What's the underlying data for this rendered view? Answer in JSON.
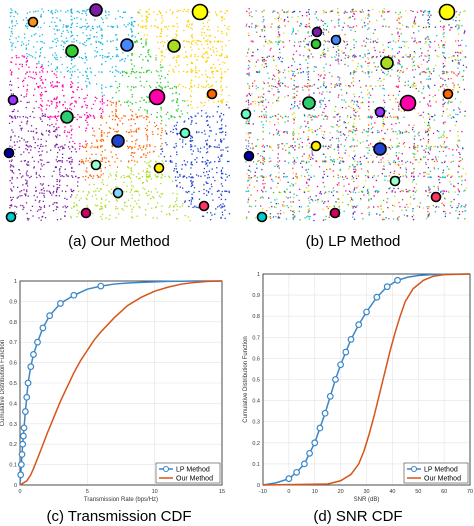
{
  "captions": {
    "a": "(a) Our Method",
    "b": "(b) LP Method",
    "c": "(c) Transmission CDF",
    "d": "(d) SNR CDF"
  },
  "colors": {
    "lp": "#3a86c8",
    "ours": "#d95319",
    "frame": "#222222",
    "grid": "#e3e3e3"
  },
  "maps": {
    "a": {
      "nodes": [
        {
          "color": "#ffff00",
          "size": "large"
        },
        {
          "color": "#7b1fa2",
          "size": "medium"
        },
        {
          "color": "#f7941d",
          "size": "small"
        },
        {
          "color": "#33cc33",
          "size": "medium"
        },
        {
          "color": "#4488ff",
          "size": "medium"
        },
        {
          "color": "#aadd22",
          "size": "medium"
        },
        {
          "color": "#ff00aa",
          "size": "large"
        },
        {
          "color": "#ff6600",
          "size": "small"
        },
        {
          "color": "#2ecc71",
          "size": "medium"
        },
        {
          "color": "#9933ff",
          "size": "small"
        },
        {
          "color": "#2244cc",
          "size": "medium"
        },
        {
          "color": "#66ffcc",
          "size": "small"
        },
        {
          "color": "#ffee00",
          "size": "small"
        },
        {
          "color": "#000099",
          "size": "small"
        },
        {
          "color": "#99ffcc",
          "size": "small"
        },
        {
          "color": "#cc0066",
          "size": "small"
        },
        {
          "color": "#ff3366",
          "size": "small"
        },
        {
          "color": "#7fd6ff",
          "size": "small"
        },
        {
          "color": "#00cccc",
          "size": "small"
        }
      ]
    },
    "b": {
      "nodes": [
        {
          "color": "#ffff00",
          "size": "large"
        },
        {
          "color": "#7b1fa2",
          "size": "small"
        },
        {
          "color": "#33cc33",
          "size": "small"
        },
        {
          "color": "#4488ff",
          "size": "small"
        },
        {
          "color": "#aadd22",
          "size": "medium"
        },
        {
          "color": "#ff00aa",
          "size": "large"
        },
        {
          "color": "#2ecc71",
          "size": "medium"
        },
        {
          "color": "#9933ff",
          "size": "small"
        },
        {
          "color": "#2244cc",
          "size": "medium"
        },
        {
          "color": "#ffee00",
          "size": "small"
        },
        {
          "color": "#000099",
          "size": "small"
        },
        {
          "color": "#99ffcc",
          "size": "small"
        },
        {
          "color": "#cc0066",
          "size": "small"
        },
        {
          "color": "#ff6600",
          "size": "small"
        },
        {
          "color": "#66ffcc",
          "size": "small"
        },
        {
          "color": "#ff3366",
          "size": "small"
        },
        {
          "color": "#00cccc",
          "size": "small"
        }
      ]
    }
  },
  "chart_data": [
    {
      "type": "line",
      "title": "",
      "xlabel": "Transmission Rate (bps/Hz)",
      "ylabel": "Cumulative Distribution Function",
      "xlim": [
        0,
        15
      ],
      "ylim": [
        0,
        1
      ],
      "xticks": [
        "0",
        "5",
        "10",
        "15"
      ],
      "yticks": [
        "0",
        "0.1",
        "0.2",
        "0.3",
        "0.4",
        "0.5",
        "0.6",
        "0.7",
        "0.8",
        "0.9",
        "1"
      ],
      "grid": true,
      "legend_position": "bottom-right",
      "series": [
        {
          "name": "LP Method",
          "color": "#3a86c8",
          "marker": "circle",
          "x": [
            0,
            0.05,
            0.1,
            0.15,
            0.2,
            0.3,
            0.4,
            0.5,
            0.6,
            0.8,
            1.0,
            1.3,
            1.7,
            2.2,
            3.0,
            4.0,
            5.0,
            6.0,
            7.0,
            8.0,
            9.0,
            10.0,
            11.0,
            12.0,
            13.0,
            15.0
          ],
          "y": [
            0,
            0.05,
            0.1,
            0.15,
            0.2,
            0.28,
            0.36,
            0.43,
            0.5,
            0.58,
            0.64,
            0.7,
            0.77,
            0.83,
            0.89,
            0.93,
            0.96,
            0.975,
            0.985,
            0.99,
            0.993,
            0.996,
            0.998,
            0.999,
            1.0,
            1.0
          ],
          "marker_x": [
            0.05,
            0.1,
            0.15,
            0.2,
            0.25,
            0.3,
            0.4,
            0.5,
            0.6,
            0.8,
            1.0,
            1.3,
            1.7,
            2.2,
            3.0,
            4.0,
            6.0
          ]
        },
        {
          "name": "Our Method",
          "color": "#d95319",
          "marker": "none",
          "x": [
            0,
            0.5,
            0.8,
            1.0,
            1.3,
            1.6,
            2.0,
            2.5,
            3.0,
            3.5,
            4.0,
            4.5,
            5.0,
            5.5,
            6.0,
            7.0,
            8.0,
            9.0,
            10.0,
            11.0,
            12.0,
            13.0,
            14.0,
            15.0
          ],
          "y": [
            0,
            0.02,
            0.05,
            0.08,
            0.13,
            0.18,
            0.25,
            0.33,
            0.41,
            0.48,
            0.55,
            0.61,
            0.66,
            0.71,
            0.75,
            0.82,
            0.88,
            0.92,
            0.95,
            0.97,
            0.985,
            0.993,
            0.998,
            1.0
          ]
        }
      ]
    },
    {
      "type": "line",
      "title": "",
      "xlabel": "SNR (dB)",
      "ylabel": "Cumulative Distribution Function",
      "xlim": [
        -10,
        70
      ],
      "ylim": [
        0,
        1
      ],
      "xticks": [
        "-10",
        "0",
        "10",
        "20",
        "30",
        "40",
        "50",
        "60",
        "70"
      ],
      "yticks": [
        "0",
        "0.1",
        "0.2",
        "0.3",
        "0.4",
        "0.5",
        "0.6",
        "0.7",
        "0.8",
        "0.9",
        "1"
      ],
      "grid": true,
      "legend_position": "bottom-right",
      "series": [
        {
          "name": "LP Method",
          "color": "#3a86c8",
          "marker": "circle",
          "x": [
            -10,
            -5,
            0,
            3,
            6,
            8,
            10,
            12,
            14,
            16,
            18,
            20,
            22,
            24,
            27,
            30,
            34,
            38,
            42,
            46,
            50,
            55,
            60,
            70
          ],
          "y": [
            0,
            0.01,
            0.03,
            0.06,
            0.1,
            0.15,
            0.2,
            0.27,
            0.34,
            0.42,
            0.5,
            0.57,
            0.63,
            0.69,
            0.76,
            0.82,
            0.89,
            0.94,
            0.97,
            0.985,
            0.993,
            0.997,
            0.999,
            1.0
          ],
          "marker_x": [
            0,
            3,
            6,
            8,
            10,
            12,
            14,
            16,
            18,
            20,
            22,
            24,
            27,
            30,
            34,
            38,
            42
          ]
        },
        {
          "name": "Our Method",
          "color": "#d95319",
          "marker": "none",
          "x": [
            -10,
            15,
            20,
            24,
            27,
            29,
            31,
            33,
            35,
            37,
            39,
            41,
            43,
            45,
            48,
            52,
            56,
            60,
            70
          ],
          "y": [
            0,
            0.005,
            0.02,
            0.05,
            0.1,
            0.16,
            0.24,
            0.33,
            0.43,
            0.53,
            0.63,
            0.72,
            0.8,
            0.87,
            0.93,
            0.97,
            0.99,
            0.997,
            1.0
          ]
        }
      ]
    }
  ]
}
